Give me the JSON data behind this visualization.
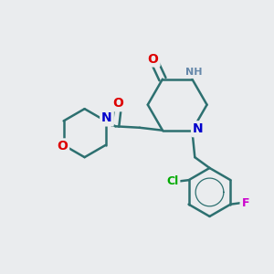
{
  "background_color": "#eaecee",
  "bond_color": "#2d7070",
  "atom_colors": {
    "N": "#0000cc",
    "O": "#dd0000",
    "Cl": "#00aa00",
    "F": "#cc00cc",
    "NH_gray": "#6688aa"
  },
  "figsize": [
    3.0,
    3.0
  ],
  "dpi": 100
}
